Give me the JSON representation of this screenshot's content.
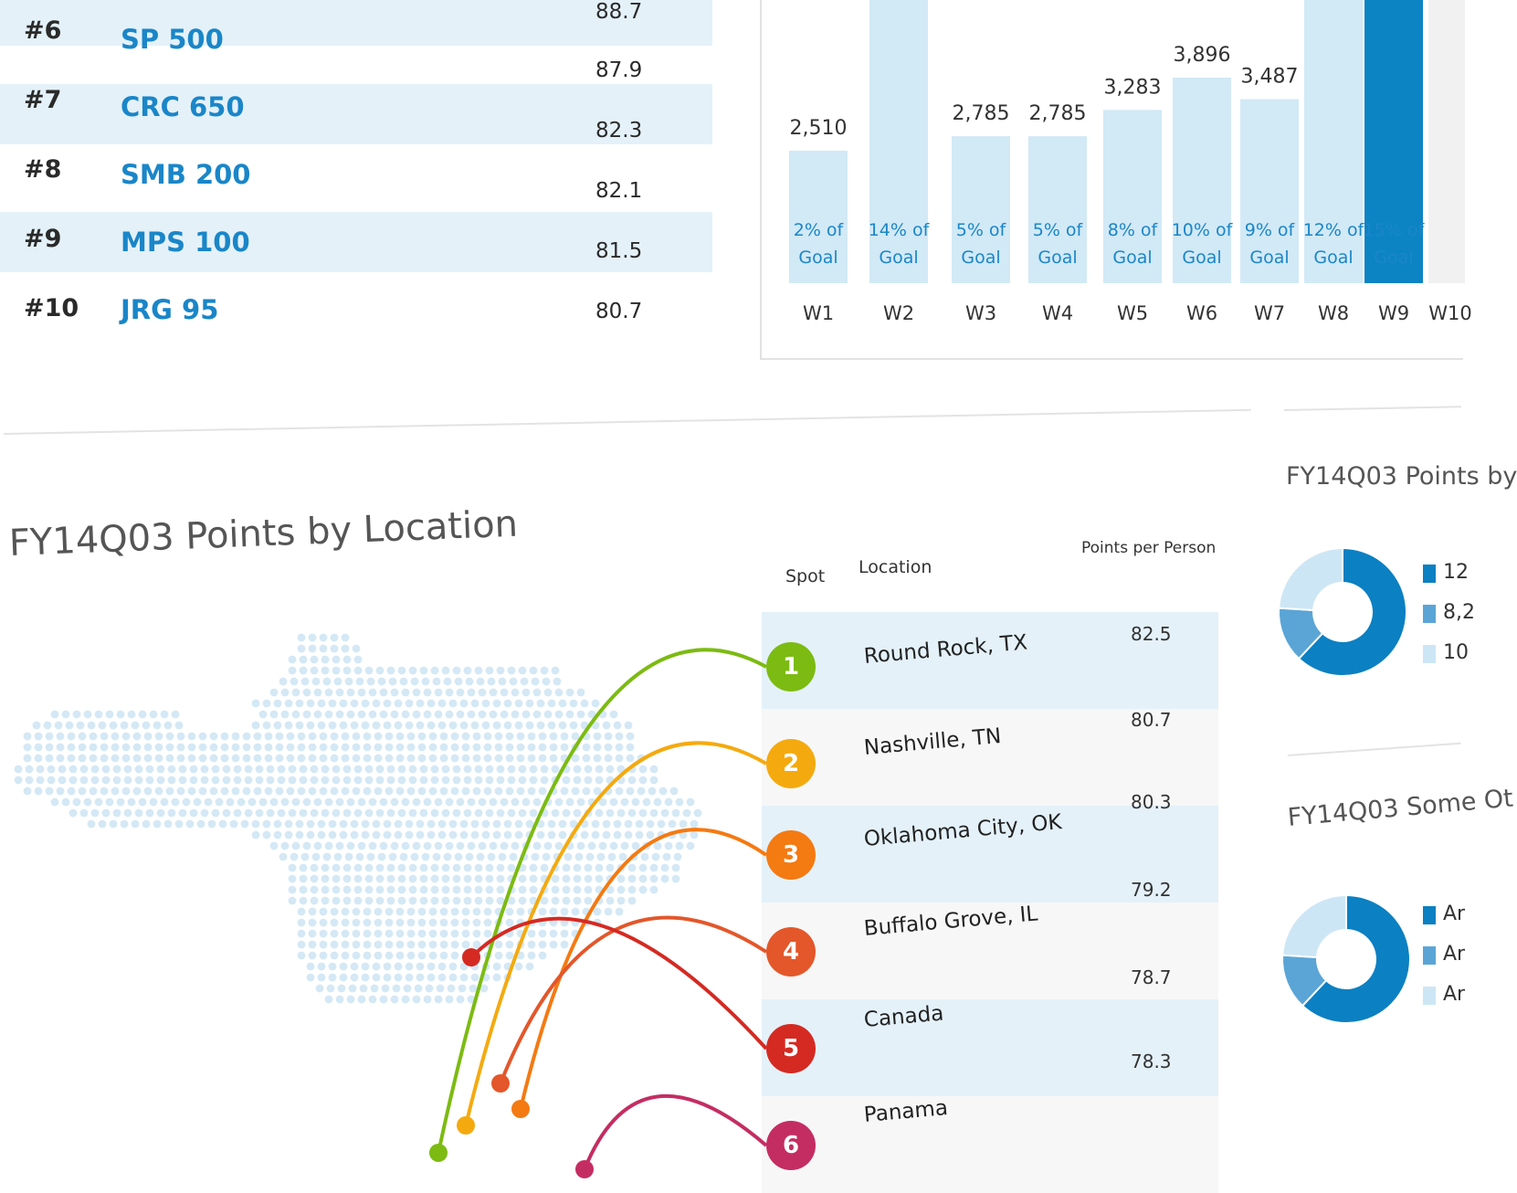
{
  "ranking": {
    "top_partial_score": "88.7",
    "rows": [
      {
        "rank": "#6",
        "name": "SP 500",
        "score": "87.9"
      },
      {
        "rank": "#7",
        "name": "CRC 650",
        "score": "82.3"
      },
      {
        "rank": "#8",
        "name": "SMB 200",
        "score": "82.1"
      },
      {
        "rank": "#9",
        "name": "MPS 100",
        "score": "81.5"
      },
      {
        "rank": "#10",
        "name": "JRG 95",
        "score": "80.7"
      }
    ]
  },
  "chart_data": {
    "type": "bar",
    "categories": [
      "W1",
      "W2",
      "W3",
      "W4",
      "W5",
      "W6",
      "W7",
      "W8",
      "W9",
      "W10"
    ],
    "values": [
      2510,
      null,
      2785,
      2785,
      3283,
      3896,
      3487,
      null,
      null,
      null
    ],
    "value_labels": [
      "2,510",
      "",
      "2,785",
      "2,785",
      "3,283",
      "3,896",
      "3,487",
      "",
      "",
      ""
    ],
    "goal_labels": [
      [
        "2% of",
        "Goal"
      ],
      [
        "14% of",
        "Goal"
      ],
      [
        "5% of",
        "Goal"
      ],
      [
        "5% of",
        "Goal"
      ],
      [
        "8% of",
        "Goal"
      ],
      [
        "10% of",
        "Goal"
      ],
      [
        "9% of",
        "Goal"
      ],
      [
        "12% of",
        "Goal"
      ],
      [
        "15% of",
        "Goal"
      ],
      [
        "",
        ""
      ]
    ],
    "highlight": "W9",
    "colors": {
      "bar": "#d2e9f6",
      "highlight": "#0c84c4",
      "label": "#1a86c8"
    }
  },
  "location": {
    "title": "FY14Q03 Points by Location",
    "headers": {
      "spot": "Spot",
      "location": "Location",
      "points": "Points per Person"
    },
    "rows": [
      {
        "spot": "1",
        "name": "Round Rock, TX",
        "points": "82.5",
        "color": "#7cbb12"
      },
      {
        "spot": "2",
        "name": "Nashville, TN",
        "points": "80.7",
        "color": "#f4aa0f"
      },
      {
        "spot": "3",
        "name": "Oklahoma City, OK",
        "points": "80.3",
        "color": "#f47a12"
      },
      {
        "spot": "4",
        "name": "Buffalo Grove, IL",
        "points": "79.2",
        "color": "#e3572a"
      },
      {
        "spot": "5",
        "name": "Canada",
        "points": "78.7",
        "color": "#d42a22"
      },
      {
        "spot": "6",
        "name": "Panama",
        "points": "78.3",
        "color": "#c42d62"
      }
    ]
  },
  "side_panels": {
    "panel1": {
      "title": "FY14Q03 Points by",
      "legend": [
        "12",
        "8,2",
        "10"
      ]
    },
    "panel2": {
      "title": "FY14Q03 Some Ot",
      "legend": [
        "Ar",
        "Ar",
        "Ar"
      ]
    },
    "colors": [
      "#0b80c2",
      "#5aa5d6",
      "#cde6f5"
    ]
  }
}
